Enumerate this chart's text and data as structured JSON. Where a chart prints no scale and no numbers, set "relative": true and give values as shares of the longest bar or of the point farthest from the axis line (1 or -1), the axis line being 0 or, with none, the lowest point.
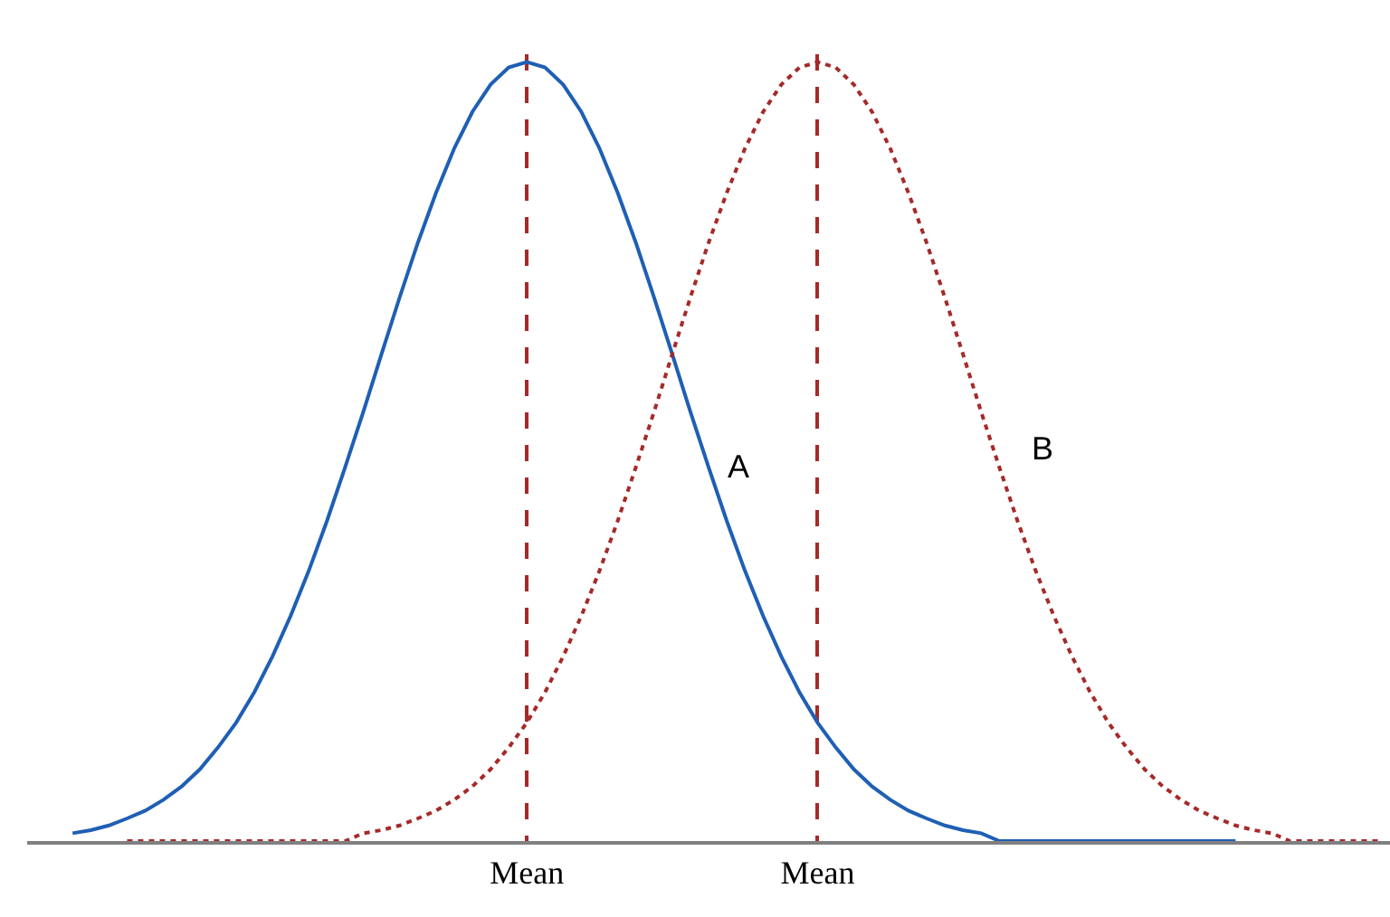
{
  "chart_data": {
    "type": "line",
    "relative": true,
    "grid": "x",
    "legend": false,
    "categories": [
      null,
      null,
      null,
      null,
      null,
      null,
      null,
      null,
      null,
      null,
      null,
      null,
      null,
      null,
      null,
      null,
      null,
      null,
      null,
      null,
      null,
      null,
      null,
      null,
      null,
      null,
      null,
      "Mean",
      null,
      null,
      null,
      null,
      null,
      null,
      null,
      null,
      null,
      null,
      null,
      null,
      null,
      null,
      null,
      "Mean",
      null,
      null,
      null,
      null,
      null,
      null,
      null,
      null,
      null,
      null,
      null,
      null,
      null,
      null,
      null,
      null,
      null,
      null,
      null,
      null,
      null,
      null,
      null,
      null,
      null,
      null,
      null,
      null,
      null,
      null,
      null
    ],
    "series": [
      {
        "name": "A",
        "color": "#1f5fb4",
        "line_style": "solid",
        "values": [
          null,
          null,
          0.01,
          0.014,
          0.02,
          0.029,
          0.039,
          0.053,
          0.07,
          0.092,
          0.12,
          0.152,
          0.191,
          0.237,
          0.289,
          0.347,
          0.411,
          0.48,
          0.551,
          0.625,
          0.698,
          0.768,
          0.832,
          0.889,
          0.936,
          0.971,
          0.993,
          1,
          0.993,
          0.971,
          0.936,
          0.889,
          0.832,
          0.768,
          0.698,
          0.625,
          0.551,
          0.48,
          0.411,
          0.347,
          0.289,
          0.237,
          0.191,
          0.152,
          0.12,
          0.092,
          0.07,
          0.053,
          0.039,
          0.029,
          0.02,
          0.014,
          0.01,
          0,
          0,
          0,
          0,
          0,
          0,
          0,
          0,
          0,
          0,
          0,
          0,
          0,
          0,
          null,
          null,
          null,
          null,
          null,
          null,
          null,
          null
        ]
      },
      {
        "name": "B",
        "color": "#a52a2a",
        "line_style": "dotted",
        "values": [
          null,
          null,
          null,
          null,
          null,
          0,
          0,
          0,
          0,
          0,
          0,
          0,
          0,
          0,
          0,
          0,
          0,
          0,
          0.01,
          0.014,
          0.02,
          0.029,
          0.039,
          0.053,
          0.07,
          0.092,
          0.12,
          0.152,
          0.191,
          0.237,
          0.289,
          0.347,
          0.411,
          0.48,
          0.551,
          0.625,
          0.698,
          0.768,
          0.832,
          0.889,
          0.936,
          0.971,
          0.993,
          1,
          0.993,
          0.971,
          0.936,
          0.889,
          0.832,
          0.768,
          0.698,
          0.625,
          0.551,
          0.48,
          0.411,
          0.347,
          0.289,
          0.237,
          0.191,
          0.152,
          0.12,
          0.092,
          0.07,
          0.053,
          0.039,
          0.029,
          0.02,
          0.014,
          0.01,
          0,
          0,
          0,
          0,
          0,
          0
        ]
      }
    ]
  }
}
